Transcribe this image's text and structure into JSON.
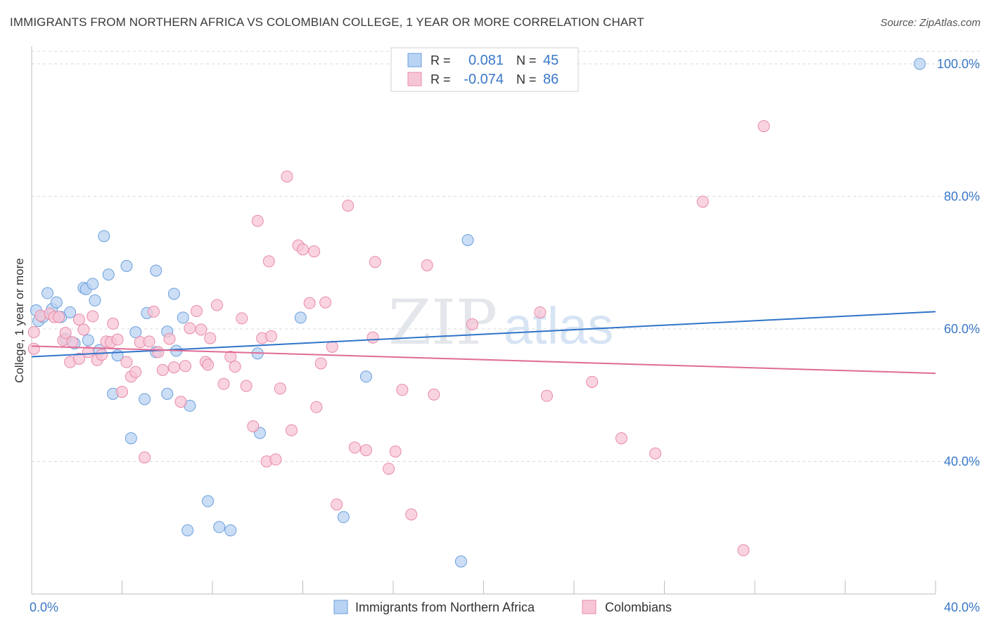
{
  "title": "IMMIGRANTS FROM NORTHERN AFRICA VS COLOMBIAN COLLEGE, 1 YEAR OR MORE CORRELATION CHART",
  "source": "Source: ZipAtlas.com",
  "watermark": {
    "zip": "ZIP",
    "atlas": "atlas"
  },
  "colors": {
    "blue_fill": "#b9d3f3",
    "blue_stroke": "#6b9fdc",
    "blue_line": "#2f74c9",
    "pink_fill": "#f7c6d6",
    "pink_stroke": "#e88aa8",
    "pink_line": "#e06b96",
    "value_text": "#3a78c8",
    "axis_label": "#3a78c8"
  },
  "legend_box": {
    "rows": [
      {
        "r_label": "R =",
        "r_value": "0.081",
        "n_label": "N =",
        "n_value": "45",
        "series": "blue"
      },
      {
        "r_label": "R =",
        "r_value": "-0.074",
        "n_label": "N =",
        "n_value": "86",
        "series": "pink"
      }
    ]
  },
  "chart_data": {
    "type": "scatter",
    "title": "IMMIGRANTS FROM NORTHERN AFRICA VS COLOMBIAN COLLEGE, 1 YEAR OR MORE CORRELATION CHART",
    "xlabel": "",
    "ylabel": "College, 1 year or more",
    "xlim": [
      0,
      40
    ],
    "ylim": [
      20,
      102
    ],
    "x_tick_labels": [
      "0.0%",
      "40.0%"
    ],
    "y_tick_labels": [
      "40.0%",
      "60.0%",
      "80.0%",
      "100.0%"
    ],
    "y_ticks": [
      40,
      60,
      80,
      100
    ],
    "grid": true,
    "legend_position": "bottom-center",
    "series": [
      {
        "name": "Immigrants from Northern Africa",
        "color": "blue",
        "trend": {
          "x": [
            0,
            40
          ],
          "y": [
            55.8,
            62.6
          ]
        },
        "points": [
          [
            0.2,
            62.8
          ],
          [
            0.3,
            61.2
          ],
          [
            0.5,
            61.8
          ],
          [
            0.7,
            65.4
          ],
          [
            0.9,
            63.0
          ],
          [
            1.1,
            64.0
          ],
          [
            1.3,
            61.8
          ],
          [
            1.7,
            62.5
          ],
          [
            1.5,
            58.5
          ],
          [
            1.9,
            57.8
          ],
          [
            2.3,
            66.2
          ],
          [
            2.4,
            66.0
          ],
          [
            2.7,
            66.8
          ],
          [
            2.8,
            64.3
          ],
          [
            2.5,
            58.3
          ],
          [
            3.2,
            74.0
          ],
          [
            3.4,
            68.2
          ],
          [
            3.0,
            56.8
          ],
          [
            3.8,
            56.0
          ],
          [
            3.6,
            50.2
          ],
          [
            4.2,
            69.5
          ],
          [
            4.6,
            59.5
          ],
          [
            4.4,
            43.5
          ],
          [
            5.1,
            62.4
          ],
          [
            5.5,
            68.8
          ],
          [
            5.5,
            56.5
          ],
          [
            6.0,
            59.6
          ],
          [
            6.3,
            65.3
          ],
          [
            6.4,
            56.7
          ],
          [
            6.7,
            61.7
          ],
          [
            5.0,
            49.4
          ],
          [
            6.0,
            50.2
          ],
          [
            7.0,
            48.4
          ],
          [
            7.8,
            34.0
          ],
          [
            6.9,
            29.6
          ],
          [
            8.3,
            30.1
          ],
          [
            8.8,
            29.6
          ],
          [
            10.0,
            56.3
          ],
          [
            10.1,
            44.3
          ],
          [
            11.9,
            61.7
          ],
          [
            13.8,
            31.6
          ],
          [
            14.8,
            52.8
          ],
          [
            19.3,
            73.4
          ],
          [
            19.0,
            24.9
          ],
          [
            39.3,
            100.0
          ]
        ]
      },
      {
        "name": "Colombians",
        "color": "pink",
        "trend": {
          "x": [
            0,
            40
          ],
          "y": [
            57.4,
            53.3
          ]
        },
        "points": [
          [
            0.1,
            59.5
          ],
          [
            0.1,
            57.0
          ],
          [
            0.4,
            62.0
          ],
          [
            0.8,
            62.3
          ],
          [
            1.0,
            61.8
          ],
          [
            1.2,
            61.8
          ],
          [
            1.4,
            58.3
          ],
          [
            1.5,
            59.4
          ],
          [
            1.7,
            55.0
          ],
          [
            1.8,
            58.0
          ],
          [
            2.1,
            61.4
          ],
          [
            2.3,
            59.9
          ],
          [
            2.5,
            56.5
          ],
          [
            2.7,
            61.9
          ],
          [
            2.9,
            55.3
          ],
          [
            3.1,
            56.1
          ],
          [
            3.3,
            58.1
          ],
          [
            3.5,
            58.0
          ],
          [
            3.6,
            60.8
          ],
          [
            3.8,
            58.4
          ],
          [
            4.0,
            50.5
          ],
          [
            4.2,
            55.0
          ],
          [
            4.4,
            52.8
          ],
          [
            4.6,
            53.5
          ],
          [
            4.8,
            58.0
          ],
          [
            5.0,
            40.6
          ],
          [
            5.2,
            58.1
          ],
          [
            5.4,
            62.6
          ],
          [
            5.6,
            56.5
          ],
          [
            5.8,
            53.8
          ],
          [
            6.1,
            58.5
          ],
          [
            6.3,
            54.2
          ],
          [
            6.6,
            49.0
          ],
          [
            6.8,
            54.4
          ],
          [
            7.0,
            60.1
          ],
          [
            7.3,
            62.7
          ],
          [
            7.5,
            59.9
          ],
          [
            7.7,
            55.0
          ],
          [
            7.9,
            58.6
          ],
          [
            7.8,
            54.6
          ],
          [
            8.2,
            63.6
          ],
          [
            8.5,
            51.7
          ],
          [
            8.8,
            55.8
          ],
          [
            9.0,
            54.3
          ],
          [
            9.3,
            61.6
          ],
          [
            9.5,
            51.4
          ],
          [
            9.8,
            45.3
          ],
          [
            10.0,
            76.3
          ],
          [
            10.2,
            58.6
          ],
          [
            10.6,
            58.9
          ],
          [
            10.5,
            70.2
          ],
          [
            11.0,
            51.0
          ],
          [
            11.3,
            83.0
          ],
          [
            11.5,
            44.7
          ],
          [
            11.8,
            72.6
          ],
          [
            12.0,
            72.0
          ],
          [
            12.3,
            63.9
          ],
          [
            12.6,
            48.2
          ],
          [
            12.5,
            71.7
          ],
          [
            12.8,
            54.8
          ],
          [
            13.0,
            64.0
          ],
          [
            13.3,
            57.3
          ],
          [
            13.5,
            33.5
          ],
          [
            14.0,
            78.6
          ],
          [
            14.3,
            42.1
          ],
          [
            14.8,
            41.7
          ],
          [
            15.1,
            58.7
          ],
          [
            15.2,
            70.1
          ],
          [
            15.8,
            38.9
          ],
          [
            16.1,
            41.5
          ],
          [
            16.4,
            50.8
          ],
          [
            16.8,
            32.0
          ],
          [
            17.5,
            69.6
          ],
          [
            17.8,
            50.1
          ],
          [
            19.5,
            60.7
          ],
          [
            10.4,
            40.0
          ],
          [
            10.8,
            40.3
          ],
          [
            22.5,
            62.5
          ],
          [
            22.8,
            49.9
          ],
          [
            24.8,
            52.0
          ],
          [
            26.1,
            43.5
          ],
          [
            27.6,
            41.2
          ],
          [
            29.7,
            79.2
          ],
          [
            31.5,
            26.6
          ],
          [
            32.4,
            90.6
          ],
          [
            2.1,
            55.5
          ]
        ]
      }
    ]
  },
  "legend": {
    "items": [
      {
        "label": "Immigrants from Northern Africa",
        "series": "blue"
      },
      {
        "label": "Colombians",
        "series": "pink"
      }
    ]
  }
}
